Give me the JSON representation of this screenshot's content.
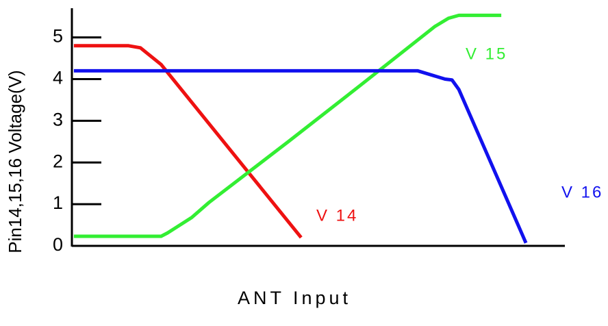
{
  "chart_data": {
    "type": "line",
    "xlabel": "ANT Input",
    "ylabel": "Pin14,15,16 Voltage(V)",
    "xlim": [
      0,
      100
    ],
    "ylim": [
      0,
      5.7
    ],
    "yticks": [
      0,
      1,
      2,
      3,
      4,
      5
    ],
    "series": [
      {
        "name": "V 14",
        "color": "#ee1111",
        "x": [
          0.4,
          11.5,
          13.9,
          18.1,
          46.5
        ],
        "values": [
          4.8,
          4.8,
          4.75,
          4.35,
          0.2
        ]
      },
      {
        "name": "V 15",
        "color": "#33ee33",
        "x": [
          0.4,
          18.1,
          19.4,
          24.3,
          27.8,
          43.8,
          58.3,
          73.6,
          76.4,
          78.5,
          87.1
        ],
        "values": [
          0.23,
          0.23,
          0.31,
          0.68,
          1.04,
          2.49,
          3.83,
          5.26,
          5.46,
          5.53,
          5.53
        ]
      },
      {
        "name": "V 16",
        "color": "#1111ee",
        "x": [
          0.4,
          70.1,
          75.7,
          77.1,
          78.5,
          92.1
        ],
        "values": [
          4.2,
          4.2,
          4.0,
          3.98,
          3.75,
          0.07
        ]
      }
    ]
  }
}
